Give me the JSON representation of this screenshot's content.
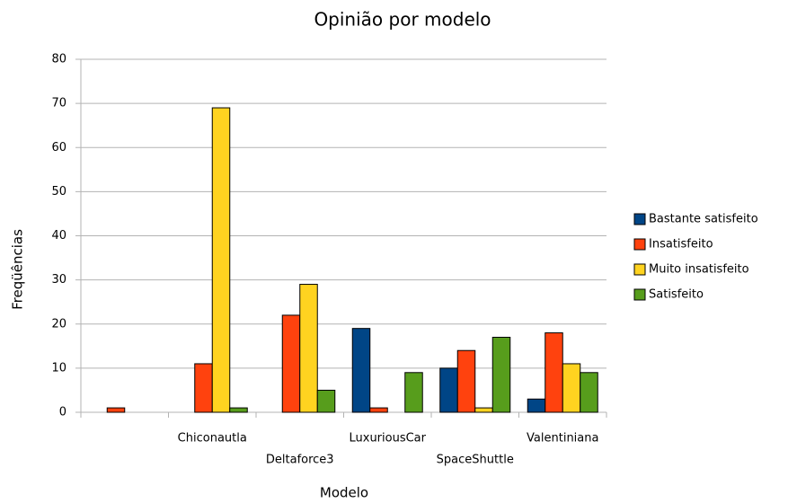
{
  "chart_data": {
    "type": "bar",
    "title": "Opinião por modelo",
    "x_label": "Modelo",
    "y_label": "Freqüências",
    "categories": [
      null,
      "Chiconautla",
      "Deltaforce3",
      "LuxuriousCar",
      "SpaceShuttle",
      "Valentiniana"
    ],
    "series": [
      {
        "name": "Bastante satisfeito",
        "color": "#004586",
        "values": [
          0,
          0,
          0,
          19,
          10,
          3
        ]
      },
      {
        "name": "Insatisfeito",
        "color": "#ff420e",
        "values": [
          1,
          11,
          22,
          1,
          14,
          18
        ]
      },
      {
        "name": "Muito insatisfeito",
        "color": "#ffd320",
        "values": [
          0,
          69,
          29,
          0,
          1,
          11
        ]
      },
      {
        "name": "Satisfeito",
        "color": "#579d1c",
        "values": [
          0,
          1,
          5,
          9,
          17,
          9
        ]
      }
    ],
    "ylim": [
      0,
      80
    ],
    "yticks": [
      0,
      10,
      20,
      30,
      40,
      50,
      60,
      70,
      80
    ],
    "grid": true,
    "legend": "right"
  }
}
